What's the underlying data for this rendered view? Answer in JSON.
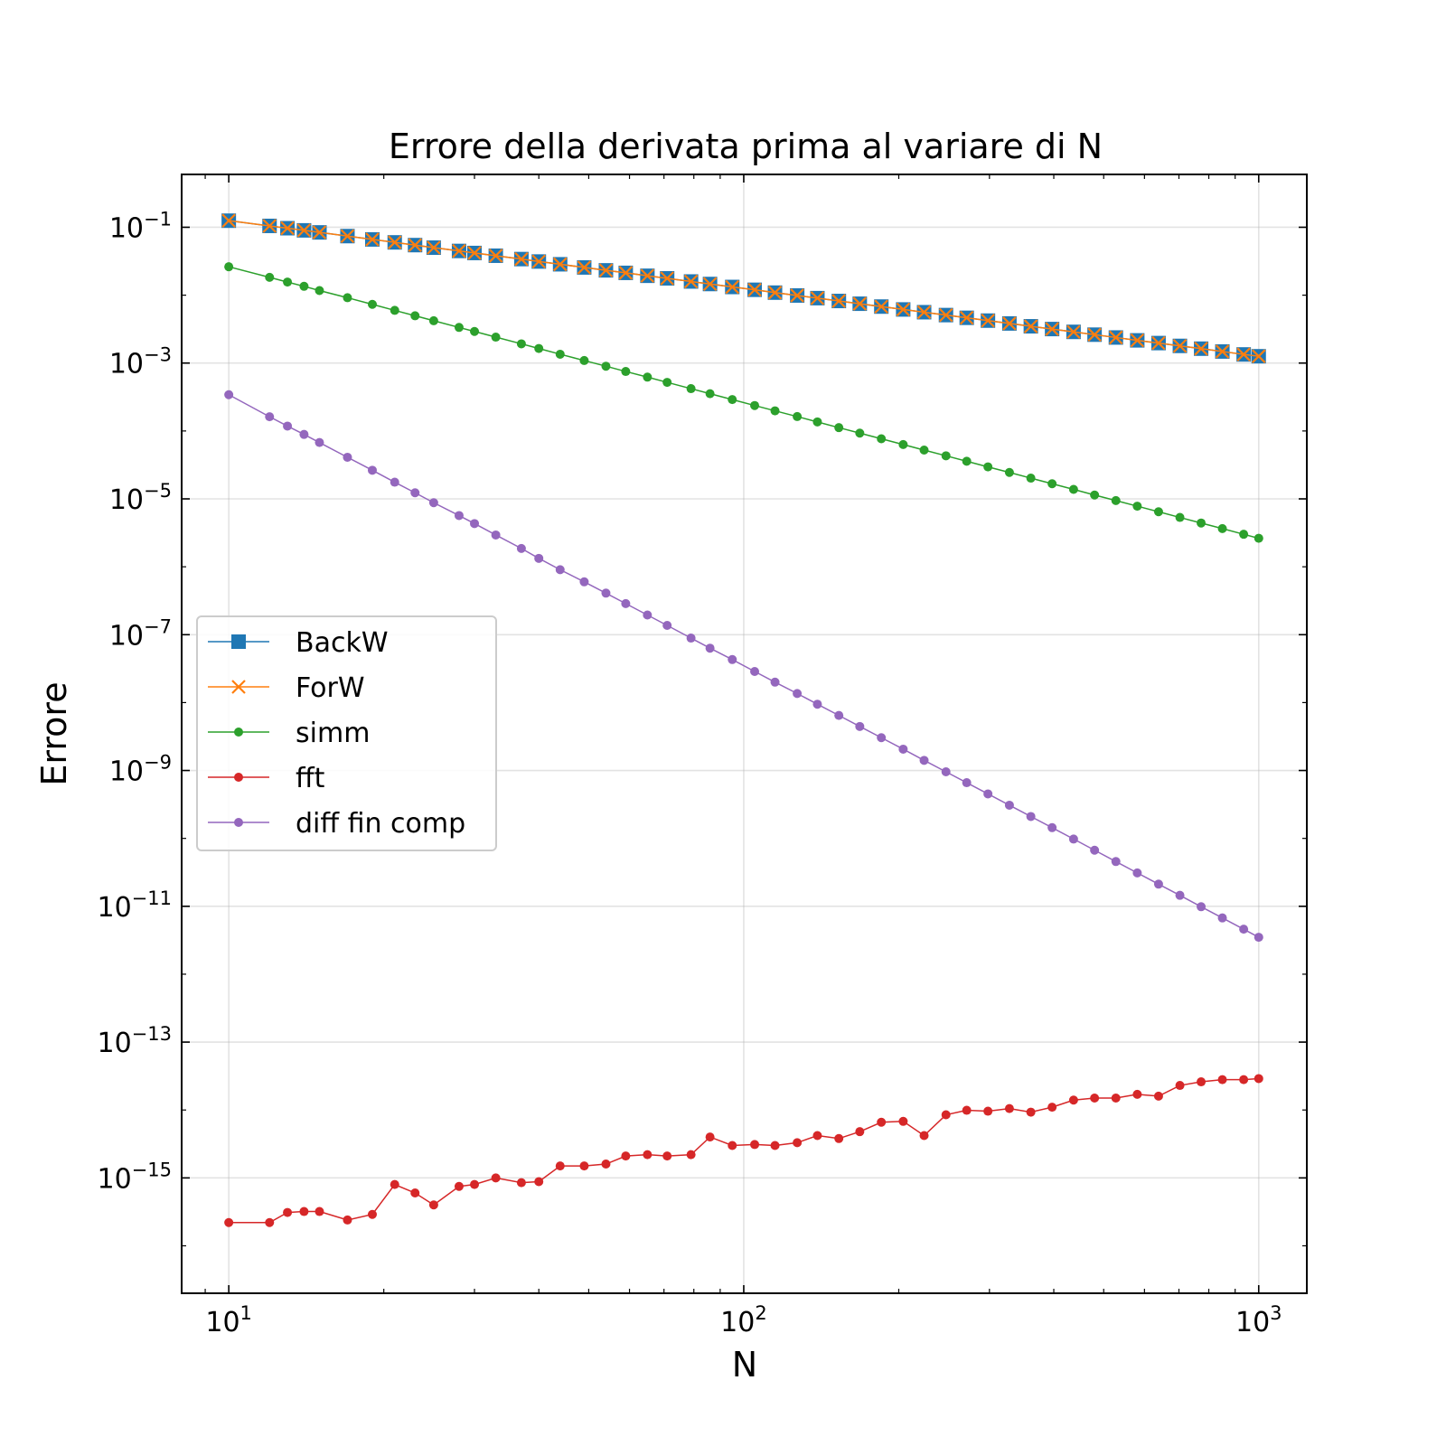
{
  "chart_data": {
    "type": "line",
    "title": "Errore della derivata prima al variare di N",
    "xlabel": "N",
    "ylabel": "Errore",
    "xscale": "log",
    "yscale": "log",
    "xlim": [
      8.1,
      1240
    ],
    "ylim": [
      2e-17,
      0.6
    ],
    "grid": true,
    "legend_position": "center-left",
    "x_ticks": [
      {
        "base": "10",
        "exp": "1",
        "value": 10
      },
      {
        "base": "10",
        "exp": "2",
        "value": 100
      },
      {
        "base": "10",
        "exp": "3",
        "value": 1000
      }
    ],
    "y_ticks": [
      {
        "base": "10",
        "exp": "−1",
        "value": 0.1
      },
      {
        "base": "10",
        "exp": "−3",
        "value": 0.001
      },
      {
        "base": "10",
        "exp": "−5",
        "value": 1e-05
      },
      {
        "base": "10",
        "exp": "−7",
        "value": 1e-07
      },
      {
        "base": "10",
        "exp": "−9",
        "value": 1e-09
      },
      {
        "base": "10",
        "exp": "−11",
        "value": 1e-11
      },
      {
        "base": "10",
        "exp": "−13",
        "value": 1e-13
      },
      {
        "base": "10",
        "exp": "−15",
        "value": 1e-15
      }
    ],
    "x": [
      10,
      12,
      13,
      14,
      15,
      17,
      19,
      21,
      23,
      25,
      28,
      30,
      33,
      37,
      40,
      44,
      49,
      54,
      59,
      65,
      71,
      79,
      86,
      95,
      105,
      115,
      127,
      139,
      153,
      168,
      185,
      204,
      224,
      247,
      271,
      298,
      328,
      361,
      397,
      437,
      480,
      528,
      581,
      639,
      703,
      773,
      850,
      935,
      1000
    ],
    "series": [
      {
        "name": "BackW",
        "color": "#1f77b4",
        "marker": "square",
        "values": [
          0.125,
          0.1047,
          0.09685,
          0.09,
          0.084,
          0.0741,
          0.0662,
          0.0599,
          0.0546,
          0.0501,
          0.0448,
          0.0418,
          0.0381,
          0.034,
          0.0313,
          0.0285,
          0.0256,
          0.0232,
          0.0213,
          0.0193,
          0.0177,
          0.0159,
          0.0146,
          0.0132,
          0.012,
          0.0109,
          0.00989,
          0.00904,
          0.00821,
          0.00748,
          0.00679,
          0.00616,
          0.00561,
          0.00509,
          0.00464,
          0.00422,
          0.00383,
          0.00348,
          0.00317,
          0.00288,
          0.00262,
          0.00238,
          0.00216,
          0.00197,
          0.00179,
          0.00163,
          0.00148,
          0.00134,
          0.00126
        ]
      },
      {
        "name": "ForW",
        "color": "#ff7f0e",
        "marker": "x",
        "values": [
          0.125,
          0.1047,
          0.09685,
          0.09,
          0.084,
          0.0741,
          0.0662,
          0.0599,
          0.0546,
          0.0501,
          0.0448,
          0.0418,
          0.0381,
          0.034,
          0.0313,
          0.0285,
          0.0256,
          0.0232,
          0.0213,
          0.0193,
          0.0177,
          0.0159,
          0.0146,
          0.0132,
          0.012,
          0.0109,
          0.00989,
          0.00904,
          0.00821,
          0.00748,
          0.00679,
          0.00616,
          0.00561,
          0.00509,
          0.00464,
          0.00422,
          0.00383,
          0.00348,
          0.00317,
          0.00288,
          0.00262,
          0.00238,
          0.00216,
          0.00197,
          0.00179,
          0.00163,
          0.00148,
          0.00134,
          0.00126
        ]
      },
      {
        "name": "simm",
        "color": "#2ca02c",
        "marker": "dot",
        "values": [
          0.0262,
          0.0183,
          0.0156,
          0.0135,
          0.0117,
          0.00917,
          0.00733,
          0.00597,
          0.00497,
          0.0042,
          0.00335,
          0.00292,
          0.00241,
          0.00192,
          0.00164,
          0.00135,
          0.00109,
          0.000899,
          0.000752,
          0.000621,
          0.00052,
          0.00042,
          0.000354,
          0.00029,
          0.000237,
          0.000198,
          0.000163,
          0.000136,
          0.000112,
          9.3e-05,
          7.67e-05,
          6.31e-05,
          5.23e-05,
          4.31e-05,
          3.58e-05,
          2.96e-05,
          2.45e-05,
          2.02e-05,
          1.67e-05,
          1.38e-05,
          1.14e-05,
          9.45e-06,
          7.81e-06,
          6.46e-06,
          5.33e-06,
          4.41e-06,
          3.65e-06,
          3.01e-06,
          2.63e-06
        ]
      },
      {
        "name": "fft",
        "color": "#d62728",
        "marker": "dot",
        "values": [
          2.2e-16,
          2.2e-16,
          3.1e-16,
          3.2e-16,
          3.2e-16,
          2.4e-16,
          2.9e-16,
          8e-16,
          6e-16,
          4e-16,
          7.5e-16,
          8e-16,
          1e-15,
          8.5e-16,
          8.8e-16,
          1.5e-15,
          1.5e-15,
          1.6e-15,
          2.1e-15,
          2.2e-15,
          2.1e-15,
          2.2e-15,
          4e-15,
          3e-15,
          3.1e-15,
          3e-15,
          3.3e-15,
          4.2e-15,
          3.8e-15,
          4.8e-15,
          6.6e-15,
          6.8e-15,
          4.2e-15,
          8.5e-15,
          9.9e-15,
          9.6e-15,
          1.05e-14,
          9.3e-15,
          1.1e-14,
          1.4e-14,
          1.5e-14,
          1.5e-14,
          1.7e-14,
          1.6e-14,
          2.3e-14,
          2.6e-14,
          2.8e-14,
          2.8e-14,
          2.9e-14
        ]
      },
      {
        "name": "diff fin comp",
        "color": "#9467bd",
        "marker": "dot",
        "values": [
          0.000342,
          0.000162,
          0.000118,
          8.9e-05,
          6.76e-05,
          4.1e-05,
          2.64e-05,
          1.76e-05,
          1.23e-05,
          8.78e-06,
          5.68e-06,
          4.33e-06,
          2.94e-06,
          1.86e-06,
          1.33e-06,
          9.06e-07,
          6e-07,
          4.09e-07,
          2.87e-07,
          1.95e-07,
          1.37e-07,
          8.91e-08,
          6.33e-08,
          4.3e-08,
          2.87e-08,
          2e-08,
          1.36e-08,
          9.46e-09,
          6.47e-09,
          4.45e-09,
          3.04e-09,
          2.06e-09,
          1.41e-09,
          9.56e-10,
          6.61e-10,
          4.52e-10,
          3.08e-10,
          2.1e-10,
          1.44e-10,
          9.78e-11,
          6.7e-11,
          4.56e-11,
          3.1e-11,
          2.12e-11,
          1.45e-11,
          9.85e-12,
          6.74e-12,
          4.6e-12,
          3.5e-12
        ]
      }
    ]
  }
}
